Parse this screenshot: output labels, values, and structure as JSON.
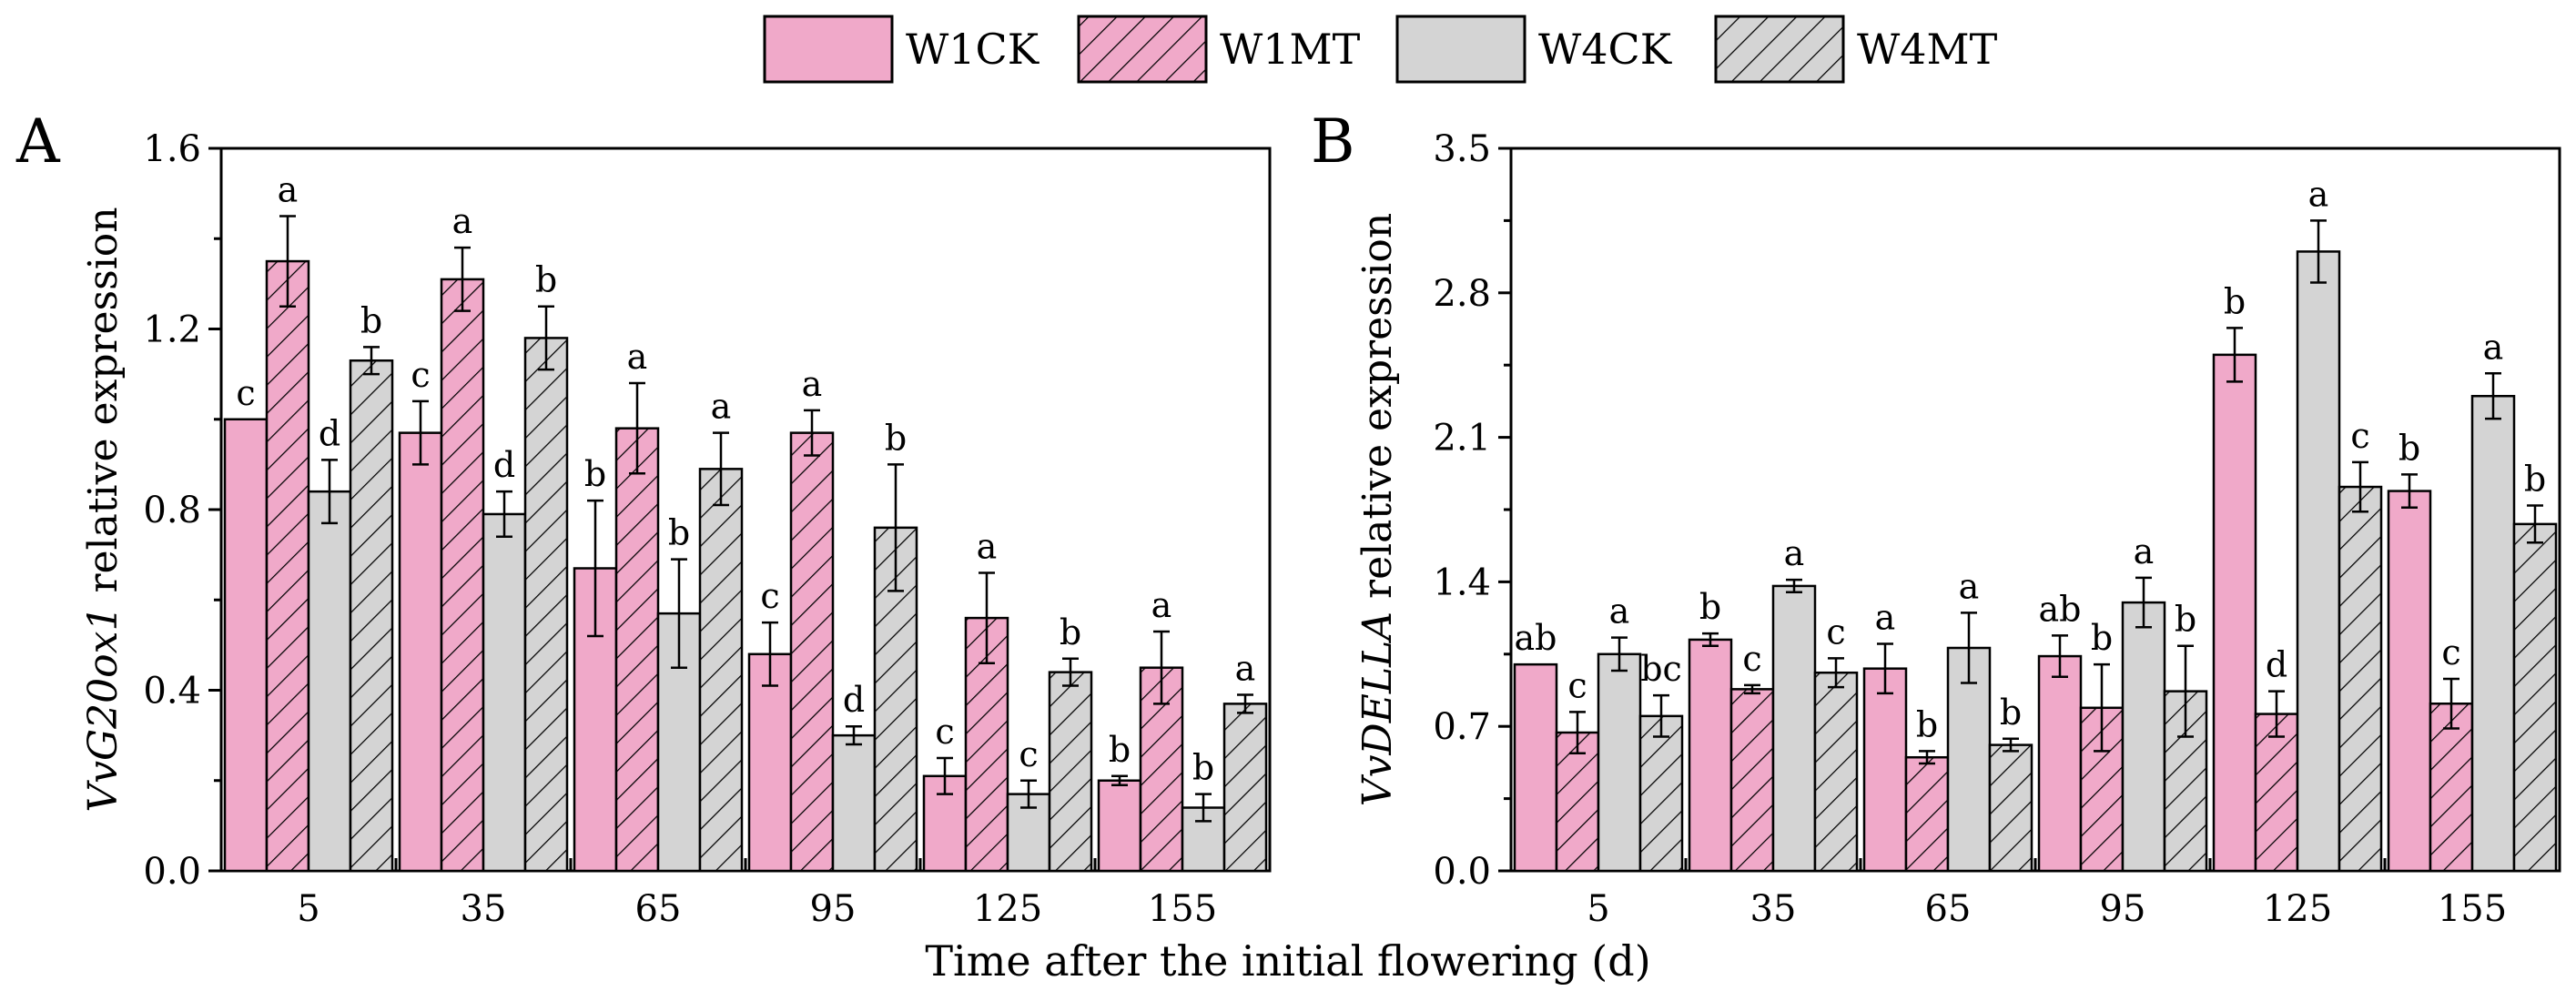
{
  "chart_data": {
    "type": "bar",
    "legend": {
      "placement": "top-center",
      "entries": [
        {
          "name": "W1CK",
          "color": "#f0a9c9",
          "hatch": false
        },
        {
          "name": "W1MT",
          "color": "#f0a9c9",
          "hatch": true
        },
        {
          "name": "W4CK",
          "color": "#d4d4d4",
          "hatch": false
        },
        {
          "name": "W4MT",
          "color": "#d4d4d4",
          "hatch": true
        }
      ]
    },
    "xlabel": "Time after the initial flowering (d)",
    "categories": [
      "5",
      "35",
      "65",
      "95",
      "125",
      "155"
    ],
    "panels": [
      {
        "letter": "A",
        "ylabel_italic": "VvG20ox1",
        "ylabel_rest": " relative expression",
        "ylim": [
          0,
          1.6
        ],
        "yticks": [
          "0.0",
          "0.4",
          "0.8",
          "1.2",
          "1.6"
        ],
        "series": [
          {
            "name": "W1CK",
            "values": [
              1.0,
              0.97,
              0.67,
              0.48,
              0.21,
              0.2
            ],
            "errors": [
              0.0,
              0.07,
              0.15,
              0.07,
              0.04,
              0.01
            ],
            "letters": [
              "c",
              "c",
              "b",
              "c",
              "c",
              "b"
            ]
          },
          {
            "name": "W1MT",
            "values": [
              1.35,
              1.31,
              0.98,
              0.97,
              0.56,
              0.45
            ],
            "errors": [
              0.1,
              0.07,
              0.1,
              0.05,
              0.1,
              0.08
            ],
            "letters": [
              "a",
              "a",
              "a",
              "a",
              "a",
              "a"
            ]
          },
          {
            "name": "W4CK",
            "values": [
              0.84,
              0.79,
              0.57,
              0.3,
              0.17,
              0.14
            ],
            "errors": [
              0.07,
              0.05,
              0.12,
              0.02,
              0.03,
              0.03
            ],
            "letters": [
              "d",
              "d",
              "b",
              "d",
              "c",
              "b"
            ]
          },
          {
            "name": "W4MT",
            "values": [
              1.13,
              1.18,
              0.89,
              0.76,
              0.44,
              0.37
            ],
            "errors": [
              0.03,
              0.07,
              0.08,
              0.14,
              0.03,
              0.02
            ],
            "letters": [
              "b",
              "b",
              "a",
              "b",
              "b",
              "a"
            ]
          }
        ]
      },
      {
        "letter": "B",
        "ylabel_italic": "VvDELLA",
        "ylabel_rest": " relative expression",
        "ylim": [
          0,
          3.5
        ],
        "yticks": [
          "0.0",
          "0.7",
          "1.4",
          "2.1",
          "2.8",
          "3.5"
        ],
        "series": [
          {
            "name": "W1CK",
            "values": [
              1.0,
              1.12,
              0.98,
              1.04,
              2.5,
              1.84
            ],
            "errors": [
              0.0,
              0.03,
              0.12,
              0.1,
              0.13,
              0.08
            ],
            "letters": [
              "ab",
              "b",
              "a",
              "ab",
              "b",
              "b"
            ]
          },
          {
            "name": "W1MT",
            "values": [
              0.67,
              0.88,
              0.55,
              0.79,
              0.76,
              0.81
            ],
            "errors": [
              0.1,
              0.02,
              0.03,
              0.21,
              0.11,
              0.12
            ],
            "letters": [
              "c",
              "c",
              "b",
              "b",
              "d",
              "c"
            ]
          },
          {
            "name": "W4CK",
            "values": [
              1.05,
              1.38,
              1.08,
              1.3,
              3.0,
              2.3
            ],
            "errors": [
              0.08,
              0.03,
              0.17,
              0.12,
              0.15,
              0.11
            ],
            "letters": [
              "a",
              "a",
              "a",
              "a",
              "a",
              "a"
            ]
          },
          {
            "name": "W4MT",
            "values": [
              0.75,
              0.96,
              0.61,
              0.87,
              1.86,
              1.68
            ],
            "errors": [
              0.1,
              0.07,
              0.03,
              0.22,
              0.12,
              0.09
            ],
            "letters": [
              "bc",
              "c",
              "b",
              "b",
              "c",
              "b"
            ]
          }
        ]
      }
    ]
  }
}
